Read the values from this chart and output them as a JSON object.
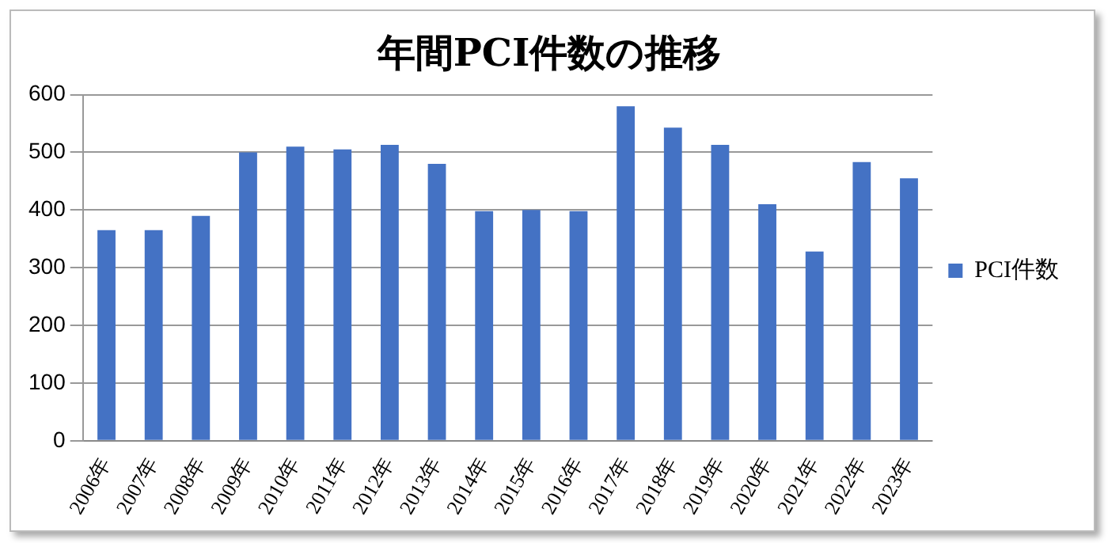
{
  "chart_data": {
    "type": "bar",
    "title": "年間PCI件数の推移",
    "categories": [
      "2006年",
      "2007年",
      "2008年",
      "2009年",
      "2010年",
      "2011年",
      "2012年",
      "2013年",
      "2014年",
      "2015年",
      "2016年",
      "2017年",
      "2018年",
      "2019年",
      "2020年",
      "2021年",
      "2022年",
      "2023年"
    ],
    "series": [
      {
        "name": "PCI件数",
        "color": "#4472c4",
        "values": [
          365,
          365,
          390,
          500,
          510,
          505,
          513,
          480,
          398,
          400,
          398,
          580,
          543,
          513,
          410,
          328,
          483,
          455
        ]
      }
    ],
    "ylim": [
      0,
      600
    ],
    "yticks": [
      0,
      100,
      200,
      300,
      400,
      500,
      600
    ],
    "grid": "y",
    "legend": "right"
  }
}
